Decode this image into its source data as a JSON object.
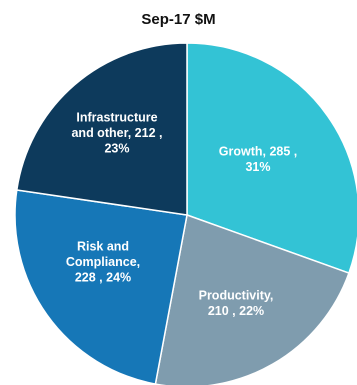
{
  "chart_data": {
    "type": "pie",
    "title": "Sep-17 $M",
    "start_angle_deg": 0,
    "direction": "clockwise",
    "slices": [
      {
        "label_lines": [
          "Growth, 285 ,",
          "31%"
        ],
        "value": 285,
        "percent": 31,
        "color": "#33c3d5"
      },
      {
        "label_lines": [
          "Productivity,",
          "210 , 22%"
        ],
        "value": 210,
        "percent": 22,
        "color": "#7f9cae"
      },
      {
        "label_lines": [
          "Risk and",
          "Compliance,",
          "228 , 24%"
        ],
        "value": 228,
        "percent": 24,
        "color": "#1677b7"
      },
      {
        "label_lines": [
          "Infrastructure",
          "and other, 212 ,",
          "23%"
        ],
        "value": 212,
        "percent": 23,
        "color": "#0d3a5c"
      }
    ]
  }
}
